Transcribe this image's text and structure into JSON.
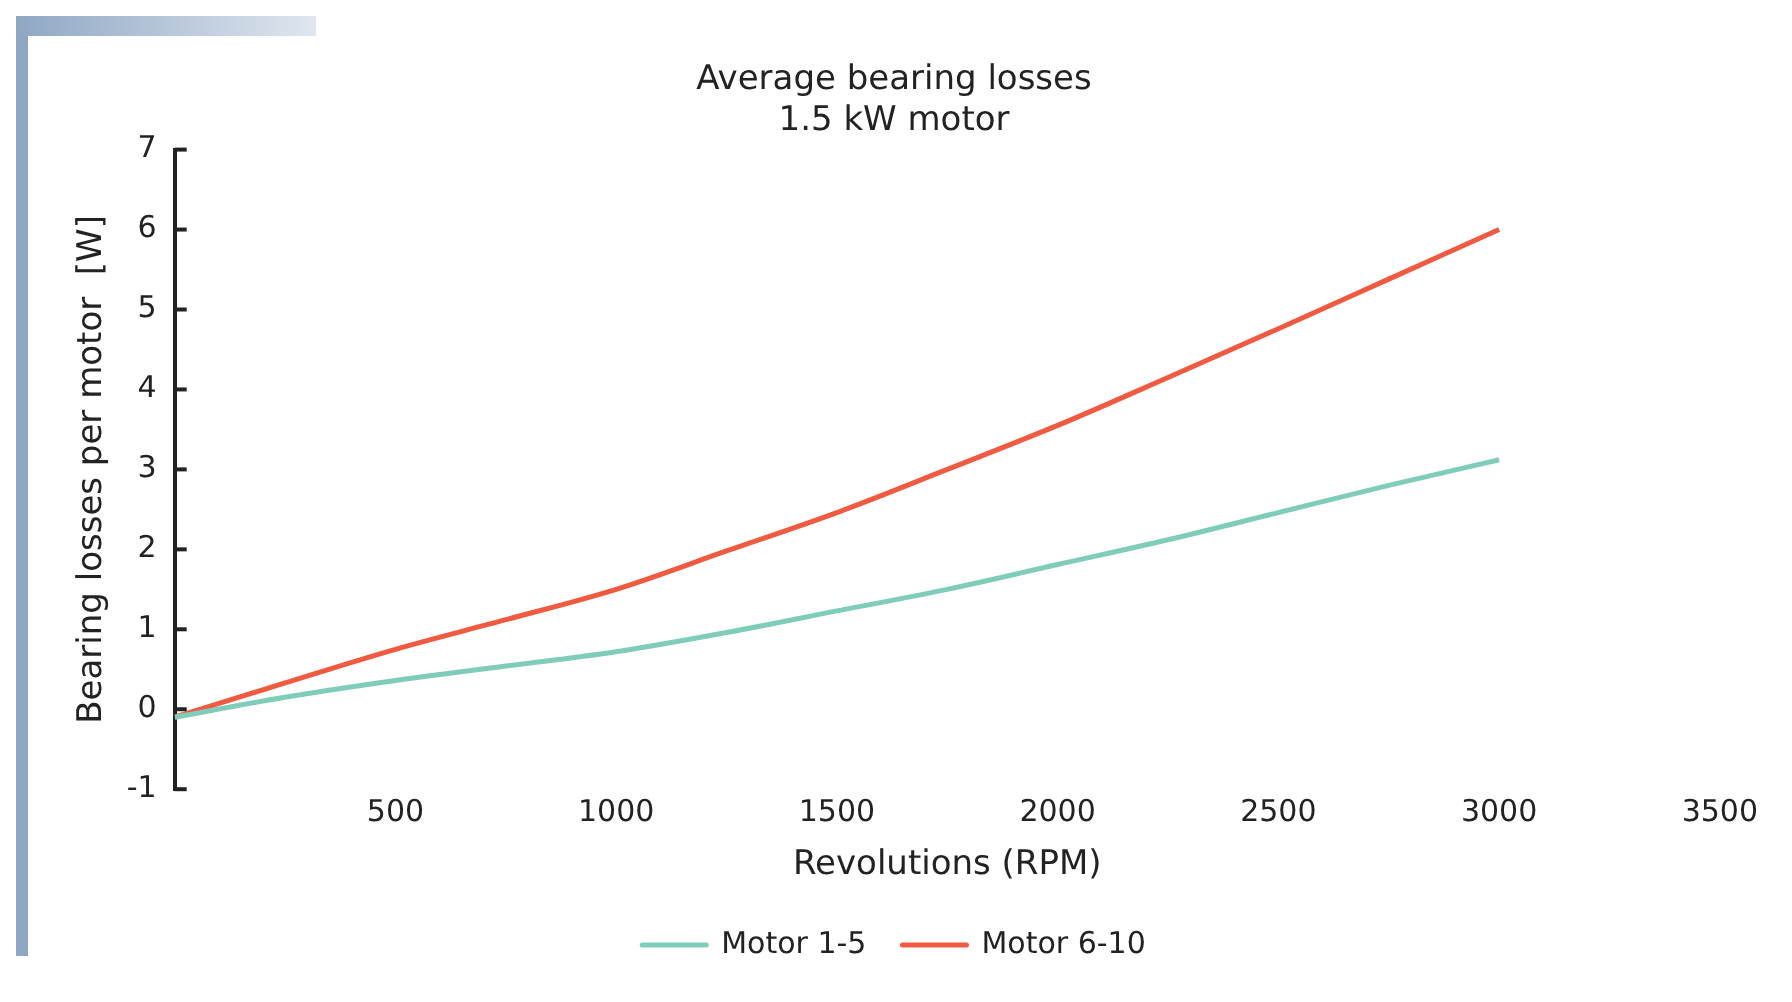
{
  "chart_data": {
    "type": "line",
    "title": [
      "Average bearing losses",
      "1.5 kW motor"
    ],
    "xlabel": "Revolutions (RPM)",
    "ylabel": "Bearing losses per motor  [W]",
    "x": [
      0,
      250,
      500,
      750,
      1000,
      1250,
      1500,
      1750,
      2000,
      2250,
      2500,
      2750,
      3000
    ],
    "series": [
      {
        "name": "Motor 1-5",
        "color": "#7fcdb9",
        "values": [
          -0.1,
          0.15,
          0.36,
          0.54,
          0.72,
          0.96,
          1.23,
          1.5,
          1.81,
          2.12,
          2.46,
          2.8,
          3.12
        ]
      },
      {
        "name": "Motor 6-10",
        "color": "#ef5a41",
        "values": [
          -0.1,
          0.33,
          0.75,
          1.12,
          1.5,
          1.98,
          2.46,
          3,
          3.55,
          4.15,
          4.76,
          5.38,
          6.0
        ]
      }
    ],
    "xlim": [
      0,
      3500
    ],
    "xticks": [
      500,
      1000,
      1500,
      2000,
      2500,
      3000,
      3500
    ],
    "ylim": [
      -1,
      7
    ],
    "yticks": [
      -1,
      0,
      1,
      2,
      3,
      4,
      5,
      6,
      7
    ],
    "grid": false,
    "legend": "bottom",
    "marker": "none",
    "line_style": "solid"
  }
}
